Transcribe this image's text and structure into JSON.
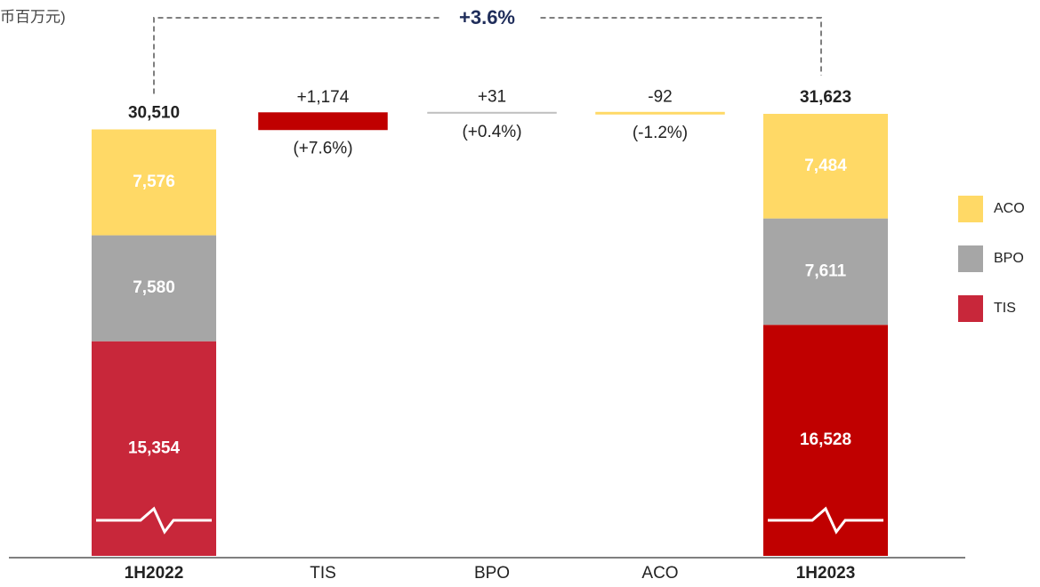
{
  "chart_data": {
    "type": "waterfall",
    "unit_label": "币百万元)",
    "categories": [
      "1H2022",
      "TIS",
      "BPO",
      "ACO",
      "1H2023"
    ],
    "series": [
      {
        "name": "TIS",
        "color": "#c8273a",
        "colors": [
          "#c8273a",
          null,
          null,
          null,
          "#c00000"
        ],
        "values": [
          15354,
          null,
          null,
          null,
          16528
        ],
        "value_labels": [
          "15,354",
          null,
          null,
          null,
          "16,528"
        ]
      },
      {
        "name": "BPO",
        "color": "#a6a6a6",
        "values": [
          7580,
          null,
          null,
          null,
          7611
        ],
        "value_labels": [
          "7,580",
          null,
          null,
          null,
          "7,611"
        ]
      },
      {
        "name": "ACO",
        "color": "#ffd966",
        "values": [
          7576,
          null,
          null,
          null,
          7484
        ],
        "value_labels": [
          "7,576",
          null,
          null,
          null,
          "7,484"
        ]
      }
    ],
    "totals": [
      30510,
      null,
      null,
      null,
      31623
    ],
    "total_labels": [
      "30,510",
      null,
      null,
      null,
      "31,623"
    ],
    "changes": [
      null,
      1174,
      31,
      -92,
      null
    ],
    "change_labels": [
      null,
      "+1,174",
      "+31",
      "-92",
      null
    ],
    "change_colors": [
      null,
      "#c00000",
      "#bfbfbf",
      "#ffd966",
      null
    ],
    "change_pct": [
      null,
      7.6,
      0.4,
      -1.2,
      null
    ],
    "change_pct_labels": [
      null,
      "(+7.6%)",
      "(+0.4%)",
      "(-1.2%)",
      null
    ],
    "growth": 3.6,
    "growth_label": "+3.6%",
    "ylim": [
      0,
      31623
    ]
  }
}
